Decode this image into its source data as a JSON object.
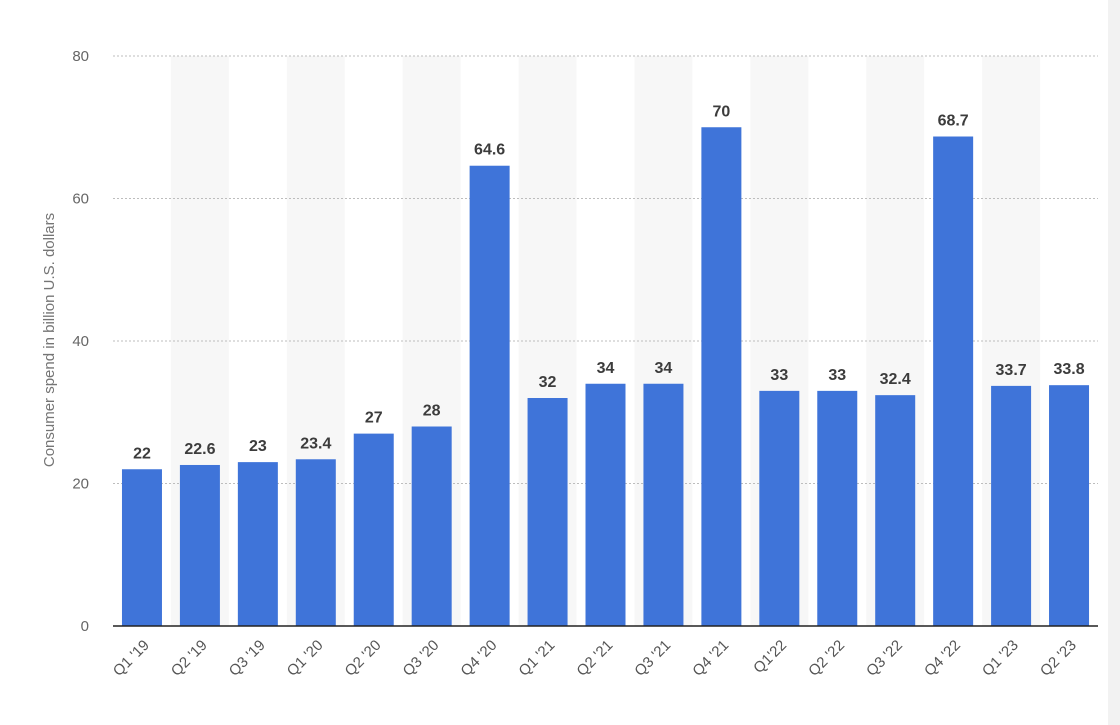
{
  "chart_data": {
    "type": "bar",
    "title": "",
    "xlabel": "",
    "ylabel": "Consumer spend in billion U.S. dollars",
    "ylim": [
      0,
      80
    ],
    "yticks": [
      0,
      20,
      40,
      60,
      80
    ],
    "grid": true,
    "bar_color": "#3f74d9",
    "band_color": "#f7f7f7",
    "categories": [
      "Q1 '19",
      "Q2 '19",
      "Q3 '19",
      "Q1 '20",
      "Q2 '20",
      "Q3 '20",
      "Q4 '20",
      "Q1 '21",
      "Q2 '21",
      "Q3 '21",
      "Q4 '21",
      "Q1'22",
      "Q2 '22",
      "Q3 '22",
      "Q4 '22",
      "Q1 '23",
      "Q2 '23"
    ],
    "values": [
      22,
      22.6,
      23,
      23.4,
      27,
      28,
      64.6,
      32,
      34,
      34,
      70,
      33,
      33,
      32.4,
      68.7,
      33.7,
      33.8
    ],
    "value_labels": [
      "22",
      "22.6",
      "23",
      "23.4",
      "27",
      "28",
      "64.6",
      "32",
      "34",
      "34",
      "70",
      "33",
      "33",
      "32.4",
      "68.7",
      "33.7",
      "33.8"
    ]
  }
}
